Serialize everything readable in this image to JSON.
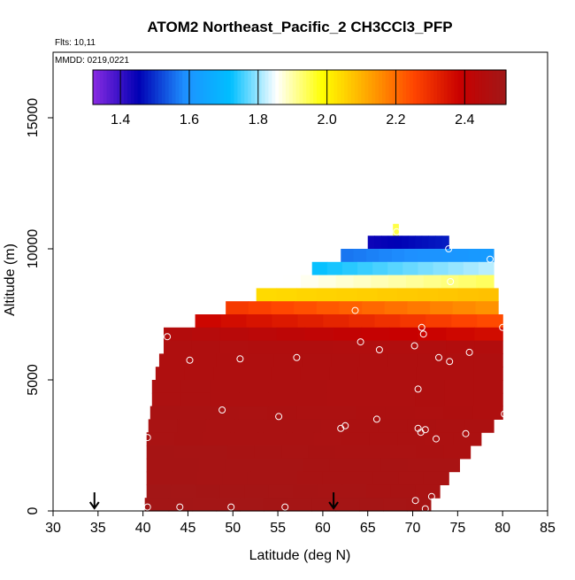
{
  "chart_data": {
    "type": "heatmap",
    "title": "ATOM2 Northeast_Pacific_2 CH3CCl3_PFP",
    "subtitle_flights": "Flts: 10,11",
    "subtitle_dates": "MMDD: 0219,0221",
    "xlabel": "Latitude (deg N)",
    "ylabel": "Altitude (m)",
    "xlim": [
      30,
      85
    ],
    "ylim": [
      0,
      17500
    ],
    "x_ticks": [
      "30",
      "35",
      "40",
      "45",
      "50",
      "55",
      "60",
      "65",
      "70",
      "75",
      "80",
      "85"
    ],
    "y_ticks": [
      "0",
      "5000",
      "10000",
      "15000"
    ],
    "colorbar": {
      "range": [
        1.32,
        2.52
      ],
      "ticks": [
        "1.4",
        "1.6",
        "1.8",
        "2.0",
        "2.2",
        "2.4"
      ],
      "colors": [
        "#8a2be2",
        "#0000b4",
        "#1e90ff",
        "#00bfff",
        "#ffffff",
        "#ffff00",
        "#ffa500",
        "#ff4500",
        "#c80000",
        "#a01818"
      ]
    },
    "field_rows": [
      {
        "alt_bottom": 10500,
        "alt_top": 10950,
        "lat_min": 67.8,
        "lat_max": 68.4,
        "start": 1.95,
        "end": 1.95
      },
      {
        "alt_bottom": 10000,
        "alt_top": 10500,
        "lat_min": 65.0,
        "lat_max": 74.0,
        "start": 1.44,
        "end": 1.48
      },
      {
        "alt_bottom": 9500,
        "alt_top": 10000,
        "lat_min": 62.0,
        "lat_max": 79.0,
        "start": 1.56,
        "end": 1.62
      },
      {
        "alt_bottom": 9000,
        "alt_top": 9500,
        "lat_min": 58.8,
        "lat_max": 79.0,
        "start": 1.72,
        "end": 1.82
      },
      {
        "alt_bottom": 8500,
        "alt_top": 9000,
        "lat_min": 55.6,
        "lat_max": 79.0,
        "start": 1.85,
        "end": 1.94
      },
      {
        "alt_bottom": 8000,
        "alt_top": 8500,
        "lat_min": 52.6,
        "lat_max": 79.5,
        "start": 2.04,
        "end": 2.08
      },
      {
        "alt_bottom": 7500,
        "alt_top": 8000,
        "lat_min": 49.2,
        "lat_max": 79.5,
        "start": 2.28,
        "end": 2.14
      },
      {
        "alt_bottom": 7000,
        "alt_top": 7500,
        "lat_min": 45.8,
        "lat_max": 80.0,
        "start": 2.38,
        "end": 2.24
      },
      {
        "alt_bottom": 6500,
        "alt_top": 7000,
        "lat_min": 42.3,
        "lat_max": 80.0,
        "start": 2.46,
        "end": 2.36
      },
      {
        "alt_bottom": 6000,
        "alt_top": 6500,
        "lat_min": 42.3,
        "lat_max": 80.0,
        "start": 2.47,
        "end": 2.46
      },
      {
        "alt_bottom": 5500,
        "alt_top": 6000,
        "lat_min": 41.8,
        "lat_max": 80.0,
        "start": 2.47,
        "end": 2.47
      },
      {
        "alt_bottom": 5000,
        "alt_top": 5500,
        "lat_min": 41.4,
        "lat_max": 80.0,
        "start": 2.47,
        "end": 2.47
      },
      {
        "alt_bottom": 4500,
        "alt_top": 5000,
        "lat_min": 41.0,
        "lat_max": 80.0,
        "start": 2.48,
        "end": 2.47
      },
      {
        "alt_bottom": 4000,
        "alt_top": 4500,
        "lat_min": 41.0,
        "lat_max": 80.0,
        "start": 2.48,
        "end": 2.47
      },
      {
        "alt_bottom": 3500,
        "alt_top": 4000,
        "lat_min": 40.8,
        "lat_max": 80.0,
        "start": 2.49,
        "end": 2.47
      },
      {
        "alt_bottom": 3000,
        "alt_top": 3500,
        "lat_min": 40.6,
        "lat_max": 79.0,
        "start": 2.49,
        "end": 2.48
      },
      {
        "alt_bottom": 2500,
        "alt_top": 3000,
        "lat_min": 40.4,
        "lat_max": 77.6,
        "start": 2.49,
        "end": 2.48
      },
      {
        "alt_bottom": 2000,
        "alt_top": 2500,
        "lat_min": 40.4,
        "lat_max": 76.4,
        "start": 2.5,
        "end": 2.48
      },
      {
        "alt_bottom": 1500,
        "alt_top": 2000,
        "lat_min": 40.4,
        "lat_max": 75.2,
        "start": 2.5,
        "end": 2.49
      },
      {
        "alt_bottom": 1000,
        "alt_top": 1500,
        "lat_min": 40.4,
        "lat_max": 74.0,
        "start": 2.5,
        "end": 2.49
      },
      {
        "alt_bottom": 500,
        "alt_top": 1000,
        "lat_min": 40.4,
        "lat_max": 73.0,
        "start": 2.51,
        "end": 2.49
      },
      {
        "alt_bottom": 0,
        "alt_top": 500,
        "lat_min": 40.2,
        "lat_max": 72.0,
        "start": 2.51,
        "end": 2.5
      }
    ],
    "samples": [
      {
        "lat": 68.2,
        "alt": 10650
      },
      {
        "lat": 74.0,
        "alt": 10000
      },
      {
        "lat": 78.6,
        "alt": 9600
      },
      {
        "lat": 74.2,
        "alt": 8750
      },
      {
        "lat": 63.6,
        "alt": 7650
      },
      {
        "lat": 80.0,
        "alt": 7000
      },
      {
        "lat": 71.0,
        "alt": 7000
      },
      {
        "lat": 42.7,
        "alt": 6650
      },
      {
        "lat": 71.2,
        "alt": 6750
      },
      {
        "lat": 64.2,
        "alt": 6450
      },
      {
        "lat": 70.2,
        "alt": 6300
      },
      {
        "lat": 66.3,
        "alt": 6150
      },
      {
        "lat": 76.3,
        "alt": 6050
      },
      {
        "lat": 45.2,
        "alt": 5750
      },
      {
        "lat": 50.8,
        "alt": 5800
      },
      {
        "lat": 57.1,
        "alt": 5850
      },
      {
        "lat": 72.9,
        "alt": 5850
      },
      {
        "lat": 74.1,
        "alt": 5700
      },
      {
        "lat": 70.6,
        "alt": 4650
      },
      {
        "lat": 48.8,
        "alt": 3850
      },
      {
        "lat": 80.2,
        "alt": 3700
      },
      {
        "lat": 55.1,
        "alt": 3600
      },
      {
        "lat": 66.0,
        "alt": 3500
      },
      {
        "lat": 62.5,
        "alt": 3250
      },
      {
        "lat": 62.0,
        "alt": 3150
      },
      {
        "lat": 70.6,
        "alt": 3150
      },
      {
        "lat": 71.4,
        "alt": 3100
      },
      {
        "lat": 70.9,
        "alt": 3000
      },
      {
        "lat": 75.9,
        "alt": 2950
      },
      {
        "lat": 40.5,
        "alt": 2800
      },
      {
        "lat": 72.6,
        "alt": 2750
      },
      {
        "lat": 72.1,
        "alt": 550
      },
      {
        "lat": 70.3,
        "alt": 400
      },
      {
        "lat": 40.5,
        "alt": 150
      },
      {
        "lat": 44.1,
        "alt": 150
      },
      {
        "lat": 49.8,
        "alt": 150
      },
      {
        "lat": 55.8,
        "alt": 150
      },
      {
        "lat": 71.4,
        "alt": 80
      }
    ],
    "flight_markers": [
      {
        "lat": 34.6
      },
      {
        "lat": 61.2
      }
    ]
  }
}
